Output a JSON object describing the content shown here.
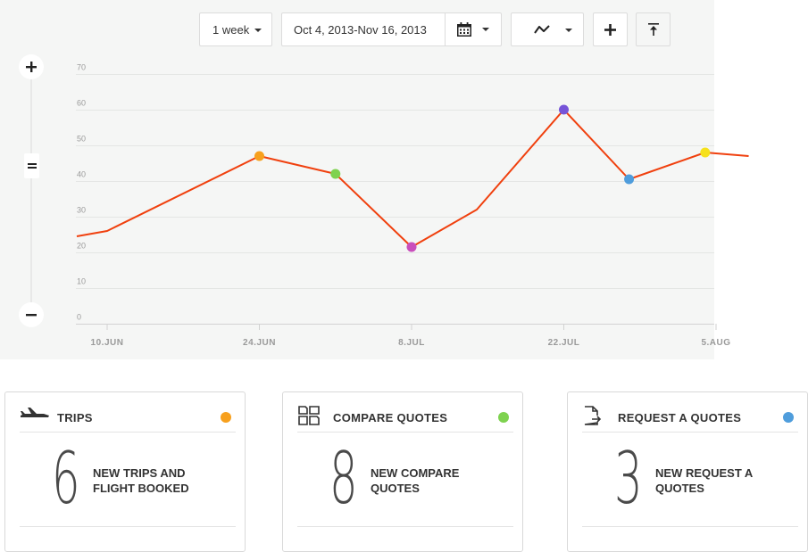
{
  "toolbar": {
    "range": "1 week",
    "date_range": "Oct 4, 2013-Nov 16, 2013"
  },
  "colors": {
    "line": "#f0400e",
    "orange": "#f7a01d",
    "green": "#7ed24f",
    "pink": "#c94ebc",
    "purple": "#7654d8",
    "blue": "#4f9ddc",
    "yellow": "#f6e11c"
  },
  "chart_data": {
    "type": "line",
    "y_ticks": [
      "70",
      "60",
      "50",
      "40",
      "30",
      "20",
      "10",
      "0"
    ],
    "x_ticks": [
      "10.JUN",
      "24.JUN",
      "8.JUL",
      "22.JUL",
      "5.AUG"
    ],
    "ylim": [
      0,
      70
    ],
    "grid": true,
    "series": [
      {
        "x": [
          "Jun 7",
          "Jun 10",
          "Jun 24",
          "Jul 1",
          "Jul 8",
          "Jul 14",
          "Jul 22",
          "Jul 28",
          "Aug 4",
          "Aug 8"
        ],
        "values": [
          24.5,
          26,
          47,
          42,
          21.5,
          32,
          60,
          40.5,
          48,
          47
        ]
      }
    ],
    "markers": [
      {
        "x": "Jun 24",
        "y": 47,
        "color": "#f7a01d"
      },
      {
        "x": "Jul 1",
        "y": 42,
        "color": "#7ed24f"
      },
      {
        "x": "Jul 8",
        "y": 21.5,
        "color": "#c94ebc"
      },
      {
        "x": "Jul 22",
        "y": 60,
        "color": "#7654d8"
      },
      {
        "x": "Jul 28",
        "y": 40.5,
        "color": "#4f9ddc"
      },
      {
        "x": "Aug 4",
        "y": 48,
        "color": "#f6e11c"
      }
    ]
  },
  "cards": [
    {
      "icon": "airplane-icon",
      "title": "TRIPS",
      "number": "6",
      "desc": "NEW TRIPS AND FLIGHT BOOKED",
      "dot_color": "#f7a01d"
    },
    {
      "icon": "compare-icon",
      "title": "COMPARE QUOTES",
      "number": "8",
      "desc": "NEW COMPARE QUOTES",
      "dot_color": "#7ed24f"
    },
    {
      "icon": "request-document-icon",
      "title": "REQUEST A QUOTES",
      "number": "3",
      "desc": "NEW REQUEST A QUOTES",
      "dot_color": "#4f9ddc"
    }
  ]
}
